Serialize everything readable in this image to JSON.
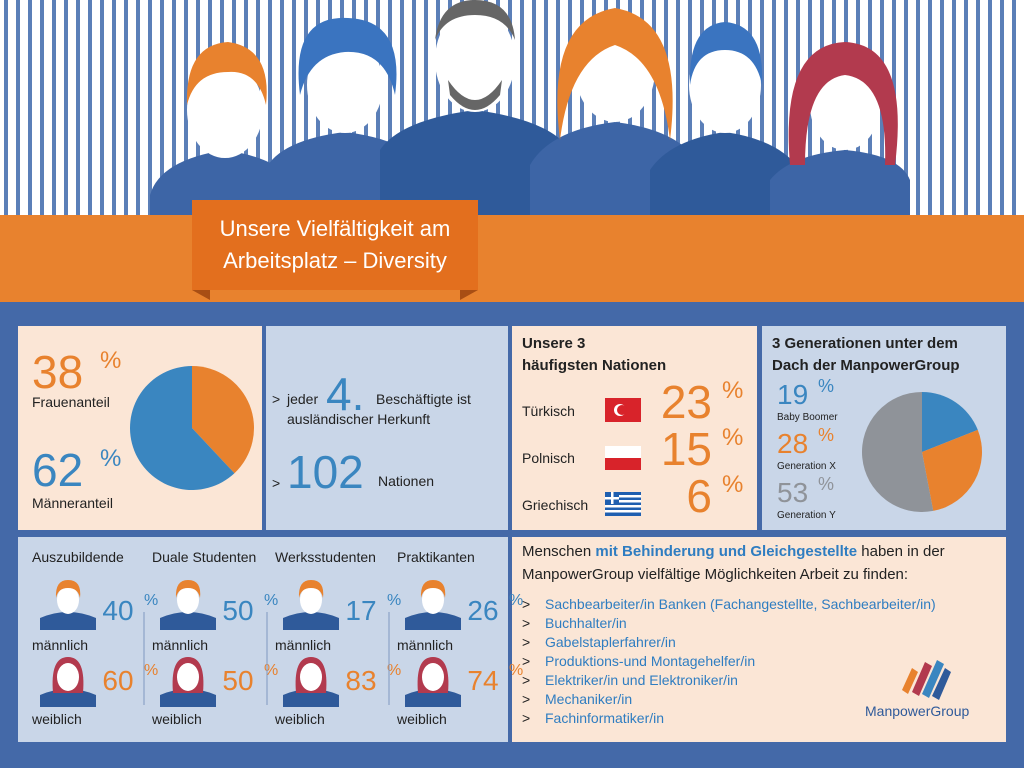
{
  "header": {
    "title_line1": "Unsere Vielfältigkeit am",
    "title_line2": "Arbeitsplatz – Diversity"
  },
  "unit": "%",
  "gender": {
    "items": [
      {
        "value": 38,
        "label": "Frauenanteil",
        "color": "#e8822e"
      },
      {
        "value": 62,
        "label": "Männeranteil",
        "color": "#3a86c0"
      }
    ]
  },
  "origin": {
    "prefix": ">",
    "word": "jeder",
    "number": "4.",
    "rest_line1": "Beschäftigte ist",
    "rest_line2": "ausländischer Herkunft",
    "nations_value": 102,
    "nations_label": "Nationen"
  },
  "nations": {
    "title_line1": "Unsere 3",
    "title_line2": "häufigsten Nationen",
    "items": [
      {
        "name": "Türkisch",
        "value": 23
      },
      {
        "name": "Polnisch",
        "value": 15
      },
      {
        "name": "Griechisch",
        "value": 6
      }
    ]
  },
  "generations": {
    "title_line1": "3 Generationen unter dem",
    "title_line2": "Dach der ManpowerGroup",
    "items": [
      {
        "name": "Baby Boomer",
        "value": 19,
        "color": "#3a86c0"
      },
      {
        "name": "Generation X",
        "value": 28,
        "color": "#e8822e"
      },
      {
        "name": "Generation Y",
        "value": 53,
        "color": "#8f9399"
      }
    ]
  },
  "groups": {
    "male_label": "männlich",
    "female_label": "weiblich",
    "items": [
      {
        "name": "Auszubildende",
        "male": 40,
        "female": 60
      },
      {
        "name": "Duale Studenten",
        "male": 50,
        "female": 50
      },
      {
        "name": "Werksstudenten",
        "male": 17,
        "female": 83
      },
      {
        "name": "Praktikanten",
        "male": 26,
        "female": 74
      }
    ]
  },
  "jobs": {
    "intro_a": "Menschen",
    "intro_highlight": "mit Behinderung und Gleichgestellte",
    "intro_b": "haben in der",
    "intro_line2": "ManpowerGroup vielfältige Möglichkeiten Arbeit zu finden:",
    "bullet": ">",
    "items": [
      "Sachbearbeiter/in Banken (Fachangestellte, Sachbearbeiter/in)",
      "Buchhalter/in",
      "Gabelstaplerfahrer/in",
      "Produktions-und Montagehelfer/in",
      "Elektriker/in und Elektroniker/in",
      "Mechaniker/in",
      "Fachinformatiker/in"
    ]
  },
  "logo": "ManpowerGroup"
}
